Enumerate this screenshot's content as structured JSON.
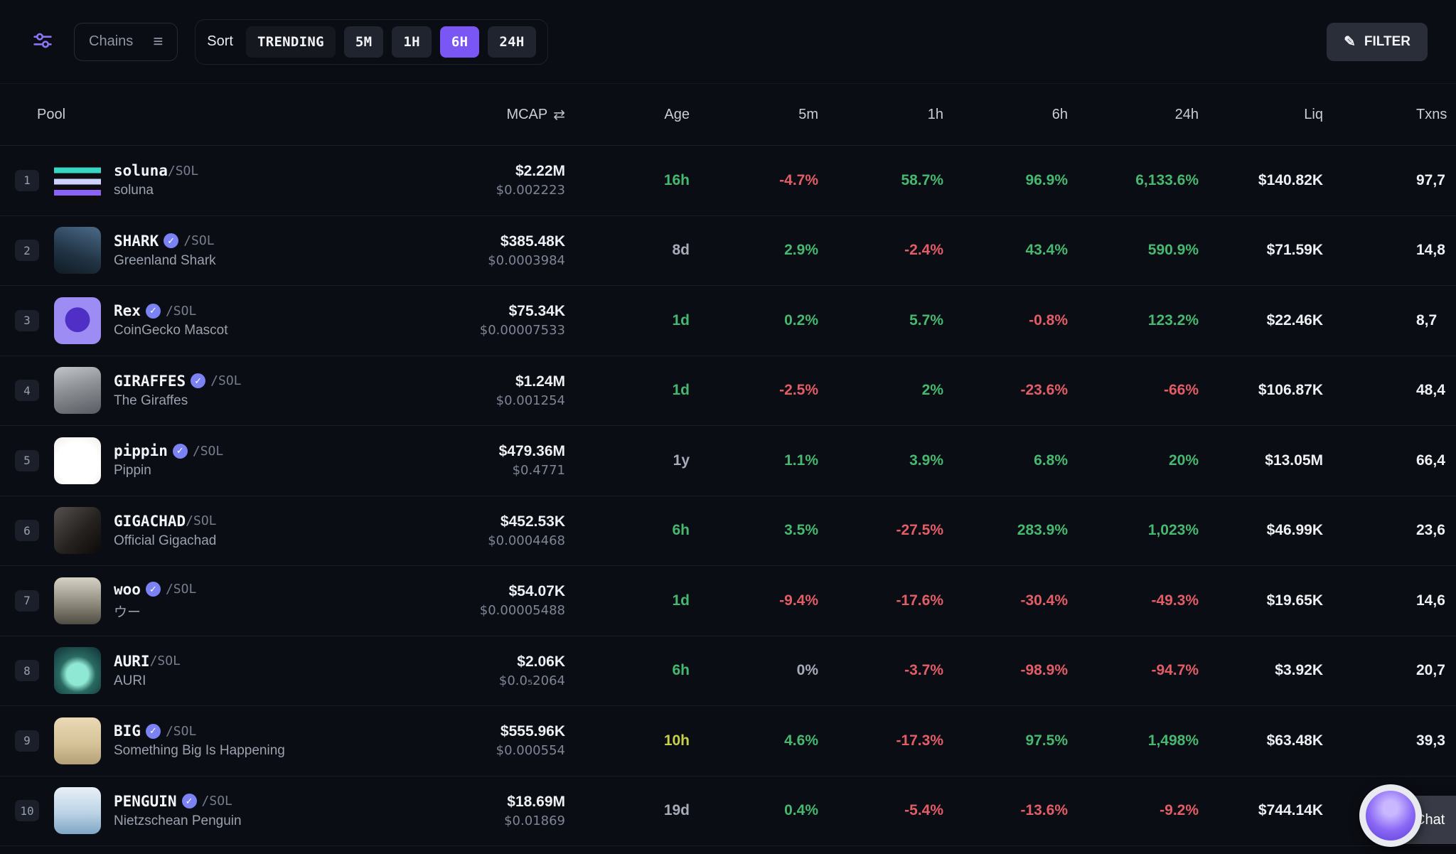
{
  "toolbar": {
    "chains_label": "Chains",
    "sort_label": "Sort",
    "sort_options": [
      {
        "label": "TRENDING",
        "active": false,
        "variant": "dark"
      },
      {
        "label": "5M",
        "active": false,
        "variant": ""
      },
      {
        "label": "1H",
        "active": false,
        "variant": ""
      },
      {
        "label": "6H",
        "active": true,
        "variant": ""
      },
      {
        "label": "24H",
        "active": false,
        "variant": ""
      }
    ],
    "filter_label": "FILTER"
  },
  "colors": {
    "accent": "#7a57f5",
    "green": "#47b86f",
    "red": "#e25d66",
    "yellow": "#c6d049",
    "neutral": "#a6adb9",
    "badge": "#7b82f3"
  },
  "table": {
    "columns": [
      "Pool",
      "MCAP",
      "Age",
      "5m",
      "1h",
      "6h",
      "24h",
      "Liq",
      "Txns"
    ],
    "rows": [
      {
        "rank": "1",
        "symbol": "soluna",
        "verified": false,
        "pair": "/SOL",
        "name": "soluna",
        "avatar": "linear-gradient(180deg,#0c0c11 0%,#0c0c11 22%,#3ad6c4 22%,#3ad6c4 34%,#0c0c11 34%,#0c0c11 46%,#cfd3ff 46%,#cfd3ff 58%,#0c0c11 58%,#0c0c11 70%,#8a63f6 70%,#8a63f6 82%,#0c0c11 82%)",
        "mcap": "$2.22M",
        "price": "$0.002223",
        "age": "16h",
        "age_color": "green",
        "m5": "-4.7%",
        "h1": "58.7%",
        "h6": "96.9%",
        "h24": "6,133.6%",
        "liq": "$140.82K",
        "txns": "97,7"
      },
      {
        "rank": "2",
        "symbol": "SHARK",
        "verified": true,
        "pair": "/SOL",
        "name": "Greenland Shark",
        "avatar": "linear-gradient(200deg,#4b6a88 0%,#203243 60%,#101b24 100%)",
        "mcap": "$385.48K",
        "price": "$0.0003984",
        "age": "8d",
        "age_color": "gray",
        "m5": "2.9%",
        "h1": "-2.4%",
        "h6": "43.4%",
        "h24": "590.9%",
        "liq": "$71.59K",
        "txns": "14,8"
      },
      {
        "rank": "3",
        "symbol": "Rex",
        "verified": true,
        "pair": "/SOL",
        "name": "CoinGecko Mascot",
        "avatar": "radial-gradient(circle at 50% 48%,#4f2fc5 0 36%,#9c8cf4 37%)",
        "mcap": "$75.34K",
        "price": "$0.00007533",
        "age": "1d",
        "age_color": "green",
        "m5": "0.2%",
        "h1": "5.7%",
        "h6": "-0.8%",
        "h24": "123.2%",
        "liq": "$22.46K",
        "txns": "8,7"
      },
      {
        "rank": "4",
        "symbol": "GIRAFFES",
        "verified": true,
        "pair": "/SOL",
        "name": "The Giraffes",
        "avatar": "linear-gradient(165deg,#c2c5c9 0%,#8d9196 45%,#585c62 100%)",
        "mcap": "$1.24M",
        "price": "$0.001254",
        "age": "1d",
        "age_color": "green",
        "m5": "-2.5%",
        "h1": "2%",
        "h6": "-23.6%",
        "h24": "-66%",
        "liq": "$106.87K",
        "txns": "48,4"
      },
      {
        "rank": "5",
        "symbol": "pippin",
        "verified": true,
        "pair": "/SOL",
        "name": "Pippin",
        "avatar": "radial-gradient(circle at 50% 55%,#ffffff 0 60%,#efede8 100%)",
        "mcap": "$479.36M",
        "price": "$0.4771",
        "age": "1y",
        "age_color": "gray",
        "m5": "1.1%",
        "h1": "3.9%",
        "h6": "6.8%",
        "h24": "20%",
        "liq": "$13.05M",
        "txns": "66,4"
      },
      {
        "rank": "6",
        "symbol": "GIGACHAD",
        "verified": false,
        "pair": "/SOL",
        "name": "Official Gigachad",
        "avatar": "linear-gradient(135deg,#55514e 0%,#26221f 55%,#0c0a09 100%)",
        "mcap": "$452.53K",
        "price": "$0.0004468",
        "age": "6h",
        "age_color": "green",
        "m5": "3.5%",
        "h1": "-27.5%",
        "h6": "283.9%",
        "h24": "1,023%",
        "liq": "$46.99K",
        "txns": "23,6"
      },
      {
        "rank": "7",
        "symbol": "woo",
        "verified": true,
        "pair": "/SOL",
        "name": "ウー",
        "avatar": "linear-gradient(180deg,#d6d2c6 0%,#8f8b7d 55%,#4f4c42 100%)",
        "mcap": "$54.07K",
        "price": "$0.00005488",
        "age": "1d",
        "age_color": "green",
        "m5": "-9.4%",
        "h1": "-17.6%",
        "h6": "-30.4%",
        "h24": "-49.3%",
        "liq": "$19.65K",
        "txns": "14,6"
      },
      {
        "rank": "8",
        "symbol": "AURI",
        "verified": false,
        "pair": "/SOL",
        "name": "AURI",
        "avatar": "radial-gradient(circle at 50% 58%,#8fe8d4 0 30%,#2a6a62 50%,#0f2e35 100%)",
        "mcap": "$2.06K",
        "price": "$0.0₅2064",
        "age": "6h",
        "age_color": "green",
        "m5": "0%",
        "h1": "-3.7%",
        "h6": "-98.9%",
        "h24": "-94.7%",
        "liq": "$3.92K",
        "txns": "20,7"
      },
      {
        "rank": "9",
        "symbol": "BIG",
        "verified": true,
        "pair": "/SOL",
        "name": "Something Big Is Happening",
        "avatar": "linear-gradient(180deg,#ead9b5 0%,#d4c196 60%,#b49f77 100%)",
        "mcap": "$555.96K",
        "price": "$0.000554",
        "age": "10h",
        "age_color": "yellow",
        "m5": "4.6%",
        "h1": "-17.3%",
        "h6": "97.5%",
        "h24": "1,498%",
        "liq": "$63.48K",
        "txns": "39,3"
      },
      {
        "rank": "10",
        "symbol": "PENGUIN",
        "verified": true,
        "pair": "/SOL",
        "name": "Nietzschean Penguin",
        "avatar": "linear-gradient(180deg,#e8f0f7 0%,#bcd3e6 55%,#7fa6c4 100%)",
        "mcap": "$18.69M",
        "price": "$0.01869",
        "age": "19d",
        "age_color": "gray",
        "m5": "0.4%",
        "h1": "-5.4%",
        "h6": "-13.6%",
        "h24": "-9.2%",
        "liq": "$744.14K",
        "txns": ""
      }
    ]
  },
  "chat": {
    "label": "Chat"
  }
}
